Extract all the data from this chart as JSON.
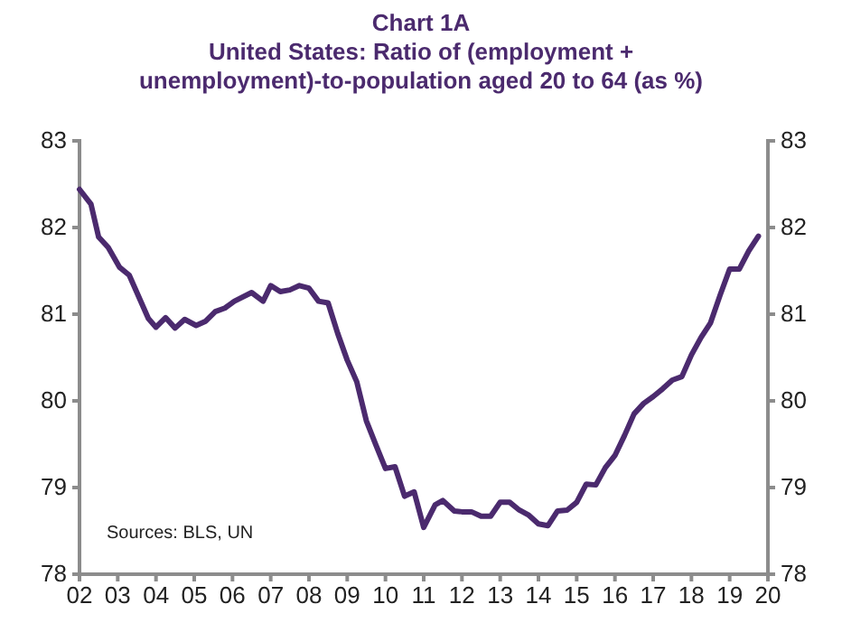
{
  "chart_data": {
    "type": "line",
    "title": "Chart 1A",
    "subtitle": "United States: Ratio of (employment + unemployment)-to-population aged 20 to 64 (as %)",
    "annotations": [
      "Sources: BLS, UN"
    ],
    "x": [
      2002.0,
      2002.3,
      2002.5,
      2002.75,
      2003.05,
      2003.3,
      2003.8,
      2004.0,
      2004.25,
      2004.5,
      2004.75,
      2005.05,
      2005.3,
      2005.55,
      2005.8,
      2006.05,
      2006.5,
      2006.8,
      2007.0,
      2007.25,
      2007.5,
      2007.75,
      2008.0,
      2008.25,
      2008.5,
      2008.75,
      2009.0,
      2009.25,
      2009.5,
      2009.75,
      2010.0,
      2010.25,
      2010.5,
      2010.75,
      2011.0,
      2011.3,
      2011.5,
      2011.8,
      2012.0,
      2012.25,
      2012.5,
      2012.75,
      2013.0,
      2013.25,
      2013.5,
      2013.75,
      2014.0,
      2014.25,
      2014.5,
      2014.75,
      2015.0,
      2015.25,
      2015.5,
      2015.75,
      2016.0,
      2016.25,
      2016.5,
      2016.75,
      2017.0,
      2017.25,
      2017.5,
      2017.75,
      2018.0,
      2018.25,
      2018.5,
      2018.75,
      2019.0,
      2019.25,
      2019.5,
      2019.75
    ],
    "series": [
      {
        "color": "#4b2a6e",
        "values": [
          82.44,
          82.27,
          81.89,
          81.77,
          81.54,
          81.45,
          80.95,
          80.85,
          80.96,
          80.84,
          80.94,
          80.87,
          80.92,
          81.03,
          81.07,
          81.15,
          81.25,
          81.15,
          81.33,
          81.26,
          81.28,
          81.33,
          81.3,
          81.15,
          81.13,
          80.78,
          80.47,
          80.22,
          79.77,
          79.49,
          79.22,
          79.24,
          78.9,
          78.95,
          78.54,
          78.8,
          78.85,
          78.73,
          78.72,
          78.72,
          78.67,
          78.67,
          78.83,
          78.83,
          78.74,
          78.68,
          78.58,
          78.56,
          78.73,
          78.74,
          78.83,
          79.04,
          79.03,
          79.23,
          79.37,
          79.6,
          79.85,
          79.97,
          80.05,
          80.14,
          80.24,
          80.28,
          80.53,
          80.73,
          80.9,
          81.22,
          81.52,
          81.52,
          81.73,
          81.9
        ]
      }
    ],
    "xlim": [
      2002,
      2020
    ],
    "xticks": [
      {
        "value": 2002,
        "label": "02"
      },
      {
        "value": 2003,
        "label": "03"
      },
      {
        "value": 2004,
        "label": "04"
      },
      {
        "value": 2005,
        "label": "05"
      },
      {
        "value": 2006,
        "label": "06"
      },
      {
        "value": 2007,
        "label": "07"
      },
      {
        "value": 2008,
        "label": "08"
      },
      {
        "value": 2009,
        "label": "09"
      },
      {
        "value": 2010,
        "label": "10"
      },
      {
        "value": 2011,
        "label": "11"
      },
      {
        "value": 2012,
        "label": "12"
      },
      {
        "value": 2013,
        "label": "13"
      },
      {
        "value": 2014,
        "label": "14"
      },
      {
        "value": 2015,
        "label": "15"
      },
      {
        "value": 2016,
        "label": "16"
      },
      {
        "value": 2017,
        "label": "17"
      },
      {
        "value": 2018,
        "label": "18"
      },
      {
        "value": 2019,
        "label": "19"
      },
      {
        "value": 2020,
        "label": "20"
      }
    ],
    "ylim": [
      78,
      83
    ],
    "yticks": [
      78,
      79,
      80,
      81,
      82,
      83
    ],
    "y2lim": [
      78,
      83
    ],
    "y2ticks": [
      78,
      79,
      80,
      81,
      82,
      83
    ],
    "grid": false,
    "marker": "none",
    "line_style": "solid"
  }
}
